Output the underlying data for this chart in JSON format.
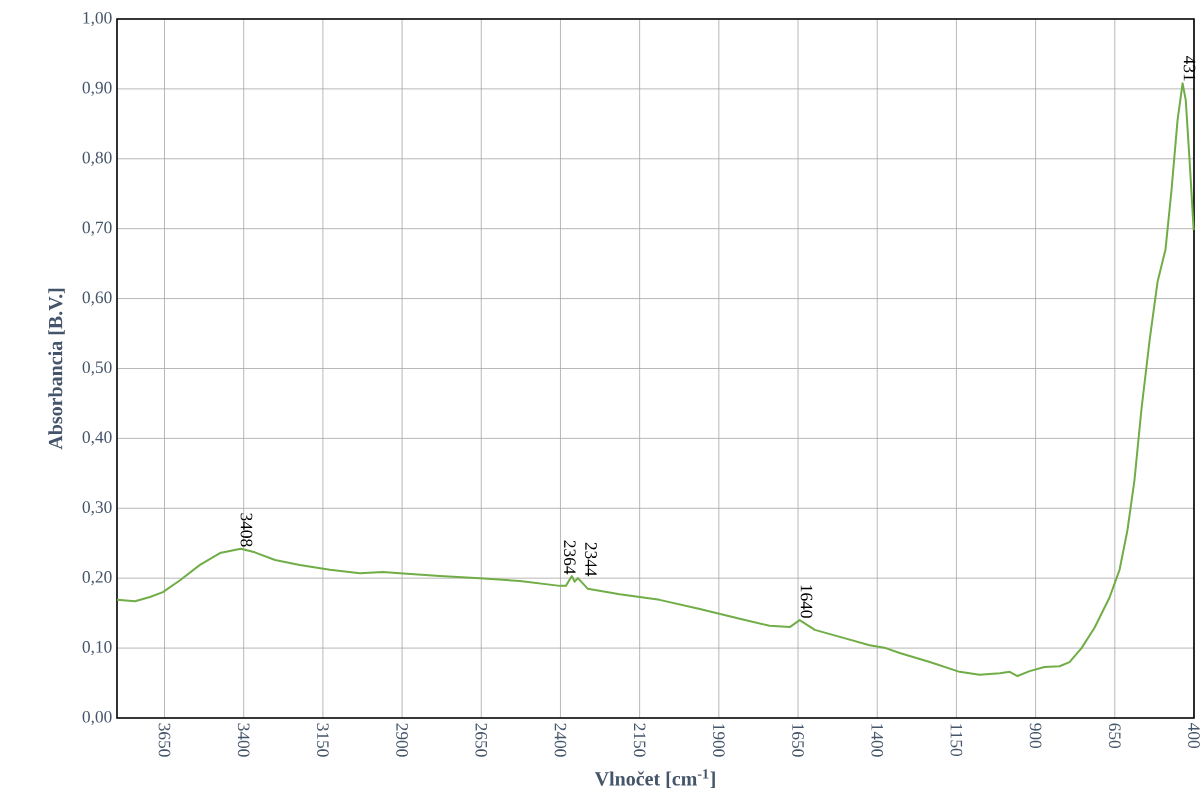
{
  "chart_data": {
    "type": "line",
    "xlabel": "Vlnočet [cm$^{-1}$]",
    "ylabel": "Absorbancia  [B.V.]",
    "xlim": [
      3800,
      400
    ],
    "xticks": [
      3650,
      3400,
      3150,
      2900,
      2650,
      2400,
      2150,
      1900,
      1650,
      1400,
      1150,
      900,
      650,
      400
    ],
    "ylim": [
      0,
      1
    ],
    "yticks": [
      {
        "value": 0,
        "label": "0,00"
      },
      {
        "value": 0.1,
        "label": "0,10"
      },
      {
        "value": 0.2,
        "label": "0,20"
      },
      {
        "value": 0.3,
        "label": "0,30"
      },
      {
        "value": 0.4,
        "label": "0,40"
      },
      {
        "value": 0.5,
        "label": "0,50"
      },
      {
        "value": 0.6,
        "label": "0,60"
      },
      {
        "value": 0.7,
        "label": "0,70"
      },
      {
        "value": 0.8,
        "label": "0,80"
      },
      {
        "value": 0.9,
        "label": "0,90"
      },
      {
        "value": 1,
        "label": "1,00"
      }
    ],
    "grid": true,
    "marker": "none",
    "line_style": "solid",
    "series": [
      {
        "color": "#70ad47",
        "x": [
          3800,
          3743,
          3696,
          3655,
          3601,
          3538,
          3475,
          3409,
          3365,
          3301,
          3223,
          3128,
          3033,
          2961,
          2907,
          2781,
          2655,
          2528,
          2402,
          2383,
          2364,
          2355,
          2345,
          2314,
          2213,
          2087,
          1960,
          1834,
          1740,
          1676,
          1645,
          1597,
          1518,
          1424,
          1373,
          1329,
          1234,
          1140,
          1077,
          1013,
          982,
          957,
          919,
          872,
          824,
          793,
          755,
          714,
          667,
          635,
          610,
          588,
          566,
          540,
          515,
          490,
          471,
          452,
          436,
          426,
          414,
          401
        ],
        "values": [
          0.169,
          0.167,
          0.173,
          0.18,
          0.197,
          0.219,
          0.236,
          0.242,
          0.237,
          0.226,
          0.219,
          0.212,
          0.207,
          0.209,
          0.207,
          0.203,
          0.2,
          0.196,
          0.189,
          0.189,
          0.203,
          0.195,
          0.2,
          0.185,
          0.177,
          0.169,
          0.156,
          0.142,
          0.132,
          0.13,
          0.14,
          0.126,
          0.116,
          0.104,
          0.1,
          0.093,
          0.08,
          0.066,
          0.062,
          0.064,
          0.066,
          0.06,
          0.067,
          0.073,
          0.074,
          0.08,
          0.1,
          0.129,
          0.172,
          0.212,
          0.269,
          0.34,
          0.441,
          0.541,
          0.624,
          0.67,
          0.755,
          0.855,
          0.908,
          0.884,
          0.798,
          0.698
        ]
      }
    ],
    "annotations": [
      {
        "text": "3408",
        "x": 3408,
        "y": 0.242
      },
      {
        "text": "2364",
        "x": 2364,
        "y": 0.203
      },
      {
        "text": "2344",
        "x": 2344,
        "y": 0.2
      },
      {
        "text": "1640",
        "x": 1640,
        "y": 0.14
      },
      {
        "text": "431",
        "x": 431,
        "y": 0.908
      }
    ]
  }
}
